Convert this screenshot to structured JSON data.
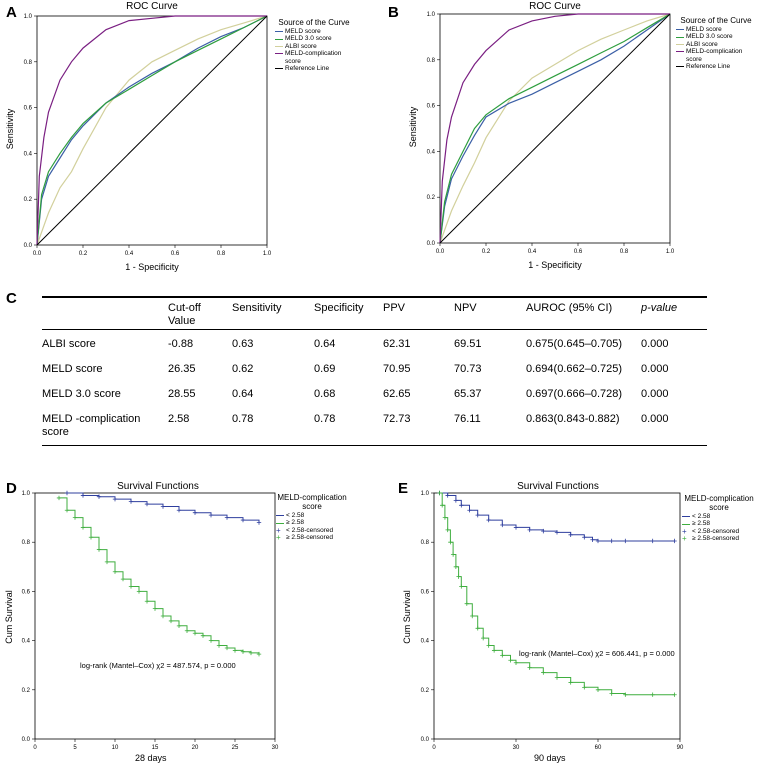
{
  "panel_labels": {
    "a": "A",
    "b": "B",
    "c": "C",
    "d": "D",
    "e": "E"
  },
  "chart_data": [
    {
      "id": "A",
      "type": "line",
      "title": "ROC Curve",
      "xlabel": "1 - Specificity",
      "ylabel": "Sensitivity",
      "xlim": [
        0,
        1
      ],
      "ylim": [
        0,
        1
      ],
      "xticks": [
        "0.0",
        "0.2",
        "0.4",
        "0.6",
        "0.8",
        "1.0"
      ],
      "yticks": [
        "0.0",
        "0.2",
        "0.4",
        "0.6",
        "0.8",
        "1.0"
      ],
      "legend_title": "Source of the Curve",
      "series": [
        {
          "name": "MELD score",
          "color": "#3b5fa6",
          "x": [
            0,
            0.02,
            0.05,
            0.1,
            0.15,
            0.2,
            0.3,
            0.4,
            0.5,
            0.6,
            0.7,
            0.8,
            0.9,
            1.0
          ],
          "y": [
            0,
            0.2,
            0.3,
            0.38,
            0.46,
            0.52,
            0.62,
            0.69,
            0.75,
            0.8,
            0.86,
            0.91,
            0.95,
            1.0
          ]
        },
        {
          "name": "MELD 3.0 score",
          "color": "#2e9e3e",
          "x": [
            0,
            0.02,
            0.05,
            0.1,
            0.15,
            0.2,
            0.3,
            0.4,
            0.5,
            0.6,
            0.7,
            0.8,
            0.9,
            1.0
          ],
          "y": [
            0,
            0.22,
            0.32,
            0.4,
            0.47,
            0.53,
            0.62,
            0.68,
            0.74,
            0.8,
            0.85,
            0.9,
            0.95,
            1.0
          ]
        },
        {
          "name": "ALBI score",
          "color": "#d2d09c",
          "x": [
            0,
            0.05,
            0.1,
            0.15,
            0.2,
            0.3,
            0.4,
            0.5,
            0.6,
            0.7,
            0.8,
            0.9,
            1.0
          ],
          "y": [
            0,
            0.14,
            0.25,
            0.32,
            0.42,
            0.6,
            0.72,
            0.8,
            0.85,
            0.9,
            0.94,
            0.97,
            1.0
          ]
        },
        {
          "name": "MELD-complication score",
          "color": "#7a1f82",
          "x": [
            0,
            0.01,
            0.03,
            0.05,
            0.1,
            0.15,
            0.2,
            0.3,
            0.4,
            0.5,
            0.6,
            0.7,
            0.8,
            0.9,
            1.0
          ],
          "y": [
            0,
            0.3,
            0.47,
            0.58,
            0.72,
            0.8,
            0.86,
            0.94,
            0.98,
            0.99,
            1.0,
            1.0,
            1.0,
            1.0,
            1.0
          ]
        },
        {
          "name": "Reference Line",
          "color": "#000000",
          "x": [
            0,
            1
          ],
          "y": [
            0,
            1
          ]
        }
      ]
    },
    {
      "id": "B",
      "type": "line",
      "title": "ROC Curve",
      "xlabel": "1 - Specificity",
      "ylabel": "Sensitivity",
      "xlim": [
        0,
        1
      ],
      "ylim": [
        0,
        1
      ],
      "xticks": [
        "0.0",
        "0.2",
        "0.4",
        "0.6",
        "0.8",
        "1.0"
      ],
      "yticks": [
        "0.0",
        "0.2",
        "0.4",
        "0.6",
        "0.8",
        "1.0"
      ],
      "legend_title": "Source of the Curve",
      "series": [
        {
          "name": "MELD score",
          "color": "#3b5fa6",
          "x": [
            0,
            0.02,
            0.05,
            0.1,
            0.15,
            0.2,
            0.3,
            0.4,
            0.5,
            0.6,
            0.7,
            0.8,
            0.9,
            1.0
          ],
          "y": [
            0,
            0.16,
            0.28,
            0.38,
            0.47,
            0.55,
            0.61,
            0.65,
            0.7,
            0.75,
            0.8,
            0.86,
            0.93,
            1.0
          ]
        },
        {
          "name": "MELD 3.0 score",
          "color": "#2e9e3e",
          "x": [
            0,
            0.02,
            0.05,
            0.1,
            0.15,
            0.2,
            0.3,
            0.4,
            0.5,
            0.6,
            0.7,
            0.8,
            0.9,
            1.0
          ],
          "y": [
            0,
            0.18,
            0.3,
            0.4,
            0.5,
            0.56,
            0.63,
            0.68,
            0.73,
            0.78,
            0.83,
            0.88,
            0.94,
            1.0
          ]
        },
        {
          "name": "ALBI score",
          "color": "#d2d09c",
          "x": [
            0,
            0.05,
            0.1,
            0.15,
            0.2,
            0.3,
            0.4,
            0.5,
            0.6,
            0.7,
            0.8,
            0.9,
            1.0
          ],
          "y": [
            0,
            0.14,
            0.25,
            0.35,
            0.46,
            0.62,
            0.72,
            0.78,
            0.84,
            0.89,
            0.93,
            0.97,
            1.0
          ]
        },
        {
          "name": "MELD-complication score",
          "color": "#7a1f82",
          "x": [
            0,
            0.01,
            0.03,
            0.05,
            0.1,
            0.15,
            0.2,
            0.3,
            0.4,
            0.5,
            0.6,
            0.7,
            0.8,
            0.9,
            1.0
          ],
          "y": [
            0,
            0.27,
            0.45,
            0.55,
            0.7,
            0.78,
            0.84,
            0.93,
            0.97,
            0.99,
            1.0,
            1.0,
            1.0,
            1.0,
            1.0
          ]
        },
        {
          "name": "Reference Line",
          "color": "#000000",
          "x": [
            0,
            1
          ],
          "y": [
            0,
            1
          ]
        }
      ]
    },
    {
      "id": "C",
      "type": "table",
      "columns": [
        "",
        "Cut-off Value",
        "Sensitivity",
        "Specificity",
        "PPV",
        "NPV",
        "AUROC (95% CI)",
        "p-value"
      ],
      "rows": [
        [
          "ALBI  score",
          "-0.88",
          "0.63",
          "0.64",
          "62.31",
          "69.51",
          "0.675(0.645–0.705)",
          "0.000"
        ],
        [
          "MELD score",
          "26.35",
          "0.62",
          "0.69",
          "70.95",
          "70.73",
          "0.694(0.662–0.725)",
          "0.000"
        ],
        [
          "MELD 3.0 score",
          "28.55",
          "0.64",
          "0.68",
          "62.65",
          "65.37",
          "0.697(0.666–0.728)",
          "0.000"
        ],
        [
          "MELD -complication score",
          "2.58",
          "0.78",
          "0.78",
          "72.73",
          "76.11",
          "0.863(0.843-0.882)",
          "0.000"
        ]
      ]
    },
    {
      "id": "D",
      "type": "line",
      "title": "Survival Functions",
      "xlabel": "28 days",
      "ylabel": "Cum Survival",
      "xlim": [
        0,
        30
      ],
      "ylim": [
        0,
        1
      ],
      "xticks": [
        "0",
        "5",
        "10",
        "15",
        "20",
        "25",
        "30"
      ],
      "yticks": [
        "0.0",
        "0.2",
        "0.4",
        "0.6",
        "0.8",
        "1.0"
      ],
      "legend_title": "MELD-complication score",
      "legend": [
        "< 2.58",
        "≥ 2.58",
        "< 2.58-censored",
        "≥ 2.58-censored"
      ],
      "annotation": "log-rank (Mantel–Cox) χ2 = 487.574, p = 0.000",
      "series": [
        {
          "name": "< 2.58",
          "color": "#2f3f9e",
          "x": [
            4,
            6,
            8,
            10,
            12,
            14,
            16,
            18,
            20,
            22,
            24,
            26,
            28
          ],
          "y": [
            1.0,
            0.99,
            0.985,
            0.975,
            0.965,
            0.955,
            0.945,
            0.93,
            0.92,
            0.91,
            0.9,
            0.89,
            0.88
          ]
        },
        {
          "name": "≥ 2.58",
          "color": "#3fae3f",
          "x": [
            3,
            4,
            5,
            6,
            7,
            8,
            9,
            10,
            11,
            12,
            13,
            14,
            15,
            16,
            17,
            18,
            19,
            20,
            21,
            22,
            23,
            24,
            25,
            26,
            27,
            28
          ],
          "y": [
            0.98,
            0.93,
            0.9,
            0.86,
            0.82,
            0.77,
            0.72,
            0.68,
            0.65,
            0.62,
            0.6,
            0.56,
            0.53,
            0.5,
            0.48,
            0.46,
            0.44,
            0.43,
            0.42,
            0.4,
            0.38,
            0.37,
            0.36,
            0.355,
            0.35,
            0.345
          ]
        }
      ]
    },
    {
      "id": "E",
      "type": "line",
      "title": "Survival Functions",
      "xlabel": "90 days",
      "ylabel": "Cum Survival",
      "xlim": [
        0,
        90
      ],
      "ylim": [
        0,
        1
      ],
      "xticks": [
        "0",
        "30",
        "60",
        "90"
      ],
      "yticks": [
        "0.0",
        "0.2",
        "0.4",
        "0.6",
        "0.8",
        "1.0"
      ],
      "legend_title": "MELD-complication score",
      "legend": [
        "< 2.58",
        "≥ 2.58",
        "< 2.58-censored",
        "≥ 2.58-censored"
      ],
      "annotation": "log-rank (Mantel–Cox) χ2 = 606.441, p = 0.000",
      "series": [
        {
          "name": "< 2.58",
          "color": "#2f3f9e",
          "x": [
            2,
            5,
            8,
            10,
            13,
            16,
            20,
            25,
            30,
            35,
            40,
            45,
            50,
            55,
            58,
            60,
            65,
            70,
            80,
            88
          ],
          "y": [
            1.0,
            0.99,
            0.97,
            0.95,
            0.93,
            0.91,
            0.89,
            0.87,
            0.86,
            0.85,
            0.845,
            0.84,
            0.83,
            0.82,
            0.81,
            0.805,
            0.805,
            0.805,
            0.805,
            0.805
          ]
        },
        {
          "name": "≥ 2.58",
          "color": "#3fae3f",
          "x": [
            2,
            3,
            4,
            5,
            6,
            7,
            8,
            9,
            10,
            12,
            14,
            16,
            18,
            20,
            22,
            25,
            28,
            30,
            35,
            40,
            45,
            50,
            55,
            60,
            65,
            70,
            80,
            88
          ],
          "y": [
            1.0,
            0.95,
            0.9,
            0.85,
            0.8,
            0.75,
            0.7,
            0.66,
            0.62,
            0.55,
            0.5,
            0.45,
            0.41,
            0.38,
            0.36,
            0.34,
            0.32,
            0.31,
            0.29,
            0.27,
            0.25,
            0.23,
            0.21,
            0.2,
            0.185,
            0.18,
            0.18,
            0.18
          ]
        }
      ]
    }
  ]
}
